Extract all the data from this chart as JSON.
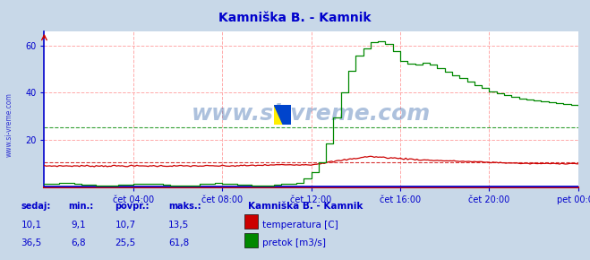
{
  "title": "Kamniška B. - Kamnik",
  "title_color": "#0000cc",
  "bg_color": "#c8d8e8",
  "plot_bg_color": "#ffffff",
  "fig_width": 6.59,
  "fig_height": 2.9,
  "dpi": 100,
  "xlim": [
    0,
    288
  ],
  "ylim": [
    0,
    66
  ],
  "yticks": [
    20,
    40,
    60
  ],
  "xtick_labels": [
    "čet 04:00",
    "čet 08:00",
    "čet 12:00",
    "čet 16:00",
    "čet 20:00",
    "pet 00:00"
  ],
  "xtick_positions": [
    48,
    96,
    144,
    192,
    240,
    288
  ],
  "grid_color": "#ffaaaa",
  "temp_color": "#cc0000",
  "flow_color": "#008800",
  "blue_color": "#0000cc",
  "temp_avg": 10.7,
  "flow_avg": 25.5,
  "watermark": "www.si-vreme.com",
  "watermark_color": "#3366aa",
  "left_label_color": "#0000cc",
  "legend_title": "Kamniška B. - Kamnik",
  "legend_title_color": "#0000cc",
  "legend_items": [
    {
      "label": "temperatura [C]",
      "color": "#cc0000"
    },
    {
      "label": "pretok [m3/s]",
      "color": "#008800"
    }
  ],
  "table_headers": [
    "sedaj:",
    "min.:",
    "povpr.:",
    "maks.:"
  ],
  "table_data": [
    [
      "10,1",
      "9,1",
      "10,7",
      "13,5"
    ],
    [
      "36,5",
      "6,8",
      "25,5",
      "61,8"
    ]
  ],
  "axis_label_color": "#0000cc"
}
